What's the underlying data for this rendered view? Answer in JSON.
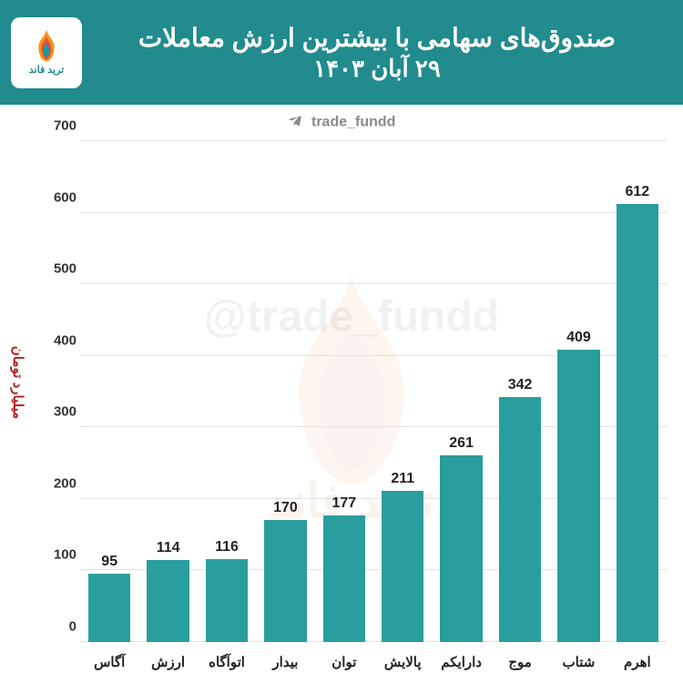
{
  "header": {
    "title_line1": "صندوق‌های سهامی با بیشترین ارزش معاملات",
    "title_line2": "۲۹ آبان ۱۴۰۳",
    "bg_color": "#218b8d",
    "text_color": "#ffffff",
    "title_fontsize": 28
  },
  "logo": {
    "text": "ترید فاند",
    "text_color": "#218b8d",
    "flame_colors": [
      "#f7931e",
      "#e74c3c",
      "#1a9b9e"
    ]
  },
  "handle": {
    "text": "trade_fundd",
    "color": "#8a8a8a",
    "icon_color": "#8a8a8a"
  },
  "watermark": {
    "handle": "@trade_fundd",
    "brand": "ترید فاند"
  },
  "chart": {
    "type": "bar",
    "categories": [
      "آگاس",
      "ارزش",
      "اتوآگاه",
      "بیدار",
      "توان",
      "پالایش",
      "دارایکم",
      "موج",
      "شتاب",
      "اهرم"
    ],
    "values": [
      95,
      114,
      116,
      170,
      177,
      211,
      261,
      342,
      409,
      612
    ],
    "bar_color": "#2a9d9f",
    "ylabel": "میلیارد تومان",
    "ylabel_color": "#b02020",
    "ylim": [
      0,
      700
    ],
    "ytick_step": 100,
    "grid_color": "#e3e3e3",
    "background_color": "#ffffff",
    "tick_color": "#333333",
    "value_label_color": "#222222",
    "x_label_color": "#222222",
    "label_fontsize": 15,
    "value_fontsize": 16,
    "bar_width": 0.72
  }
}
